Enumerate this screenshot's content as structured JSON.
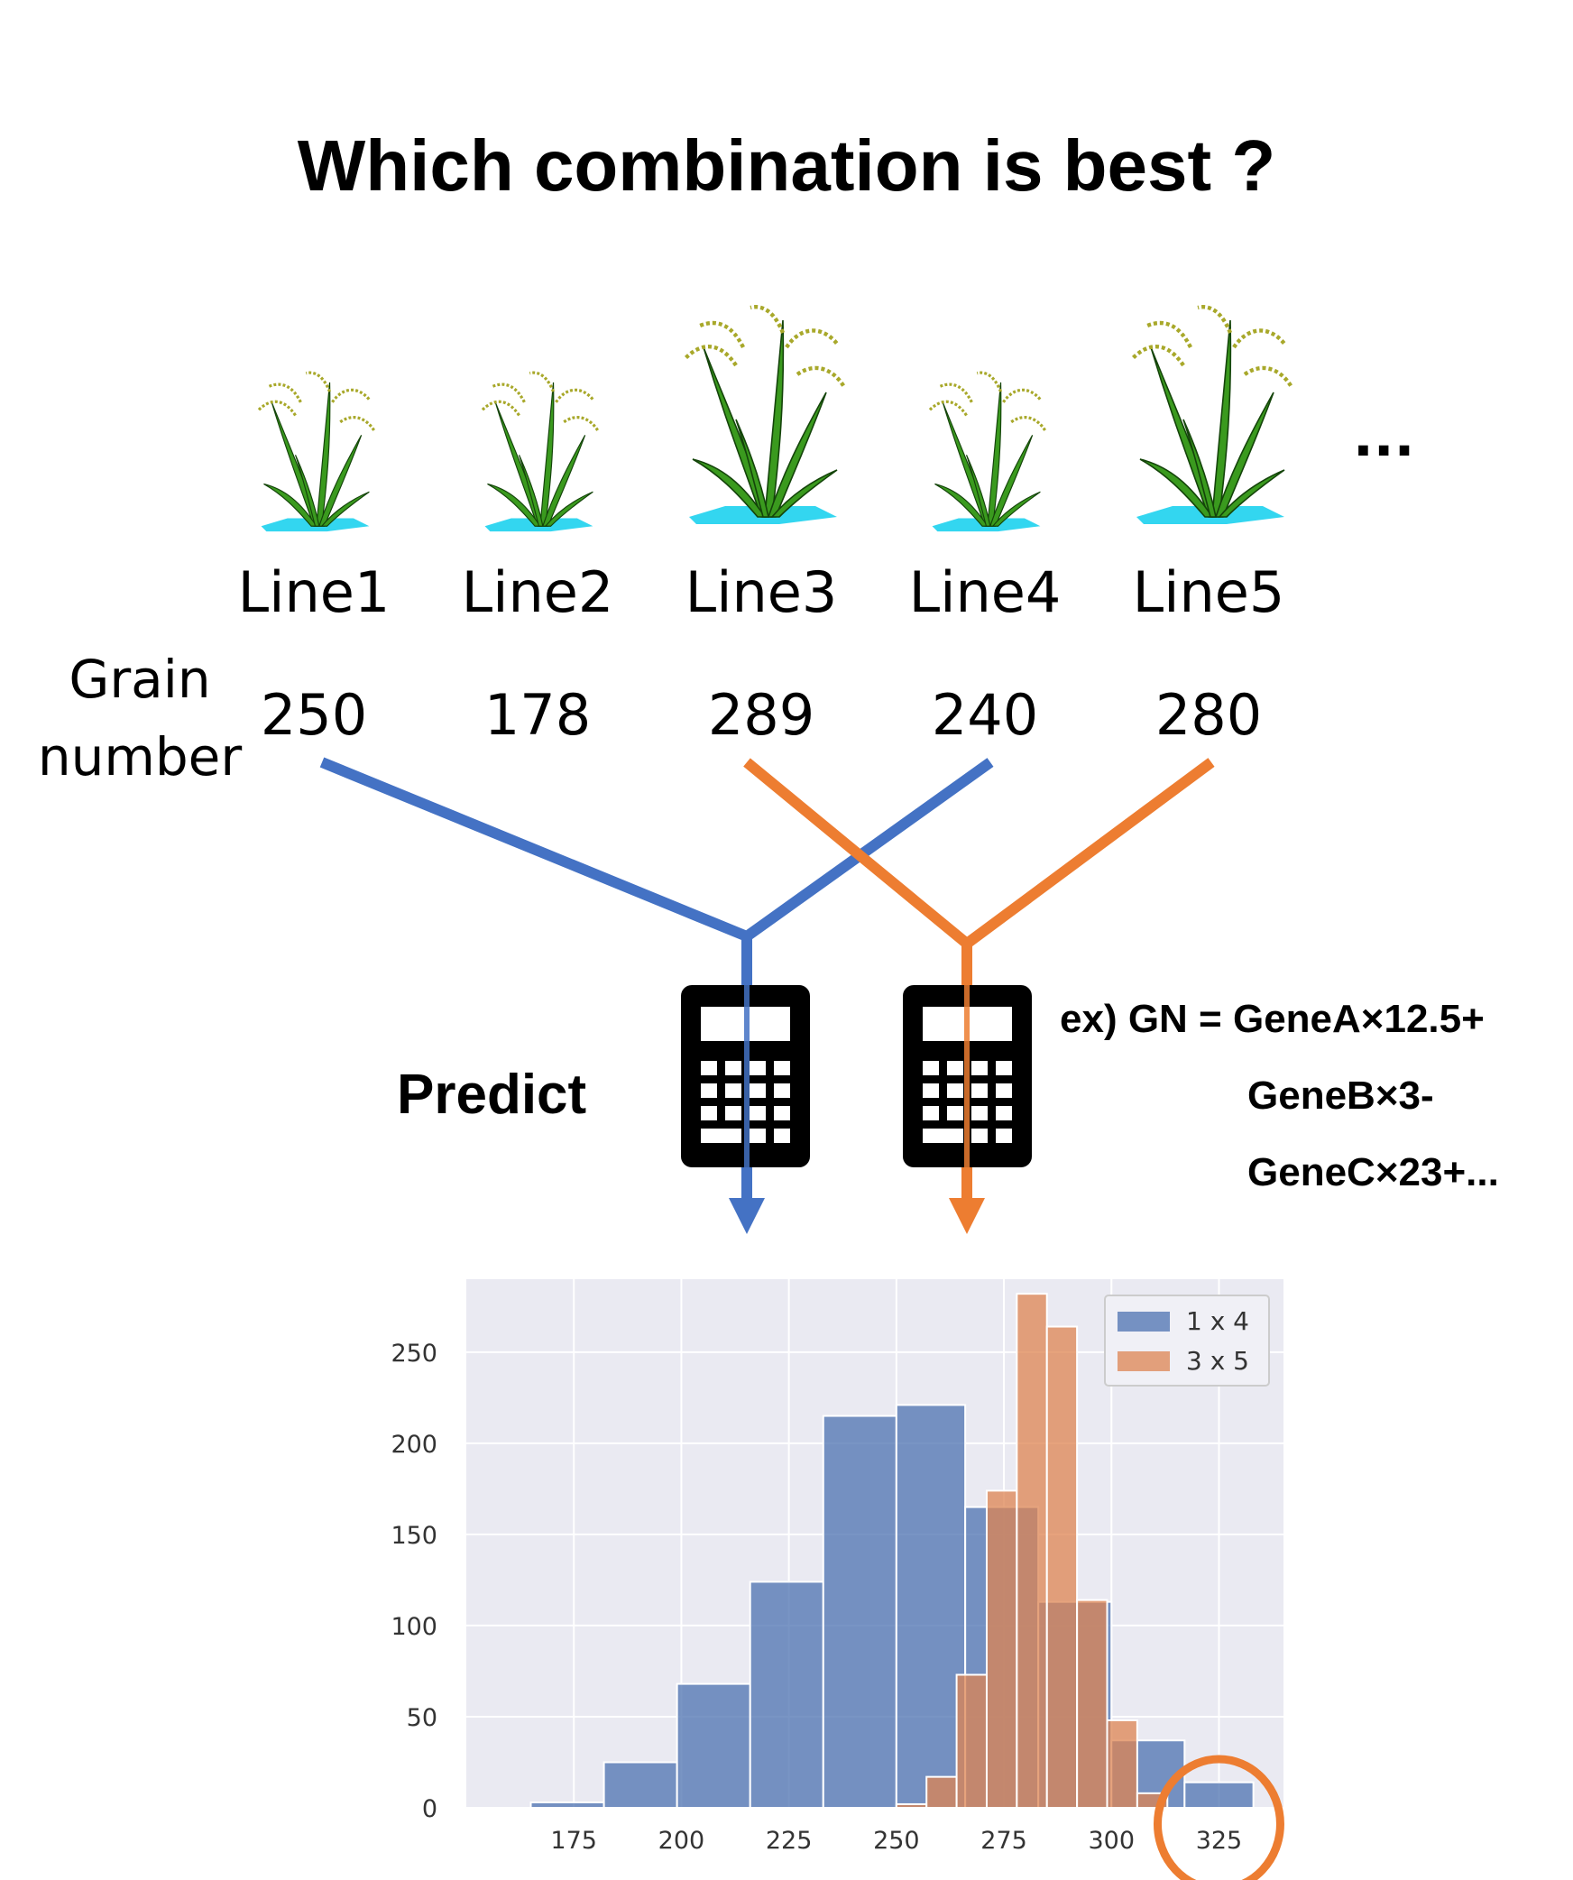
{
  "title": "Which combination is best ?",
  "lines": [
    {
      "label": "Line1",
      "grain": "250",
      "size": "small"
    },
    {
      "label": "Line2",
      "grain": "178",
      "size": "small"
    },
    {
      "label": "Line3",
      "grain": "289",
      "size": "large"
    },
    {
      "label": "Line4",
      "grain": "240",
      "size": "small"
    },
    {
      "label": "Line5",
      "grain": "280",
      "size": "large"
    }
  ],
  "more": "...",
  "grain_label_1": "Grain",
  "grain_label_2": "number",
  "predict_label": "Predict",
  "formula": {
    "line1": "ex) GN = GeneA×12.5+",
    "line2": "GeneB×3-",
    "line3": "GeneC×23+..."
  },
  "colors": {
    "blue": "#4472c4",
    "orange": "#ed7d31",
    "plot_bg": "#eaeaf2"
  },
  "icons": [
    "rice-plant-icon",
    "calculator-icon"
  ],
  "chart_data": {
    "type": "bar",
    "title": "",
    "xlabel": "",
    "ylabel": "",
    "xlim": [
      150,
      340
    ],
    "ylim": [
      0,
      290
    ],
    "xticks": [
      175,
      200,
      225,
      250,
      275,
      300,
      325
    ],
    "yticks": [
      0,
      50,
      100,
      150,
      200,
      250
    ],
    "grid": true,
    "legend": "top-right",
    "highlight": "325",
    "series": [
      {
        "name": "1 x 4",
        "color": "#4c72b0",
        "bins": [
          {
            "x0": 165,
            "x1": 182,
            "value": 3
          },
          {
            "x0": 182,
            "x1": 199,
            "value": 25
          },
          {
            "x0": 199,
            "x1": 216,
            "value": 68
          },
          {
            "x0": 216,
            "x1": 233,
            "value": 124
          },
          {
            "x0": 233,
            "x1": 250,
            "value": 215
          },
          {
            "x0": 250,
            "x1": 266,
            "value": 221
          },
          {
            "x0": 266,
            "x1": 283,
            "value": 165
          },
          {
            "x0": 283,
            "x1": 300,
            "value": 113
          },
          {
            "x0": 300,
            "x1": 317,
            "value": 37
          },
          {
            "x0": 317,
            "x1": 333,
            "value": 14
          }
        ]
      },
      {
        "name": "3 x 5",
        "color": "#dd8452",
        "bins": [
          {
            "x0": 250,
            "x1": 257,
            "value": 2
          },
          {
            "x0": 257,
            "x1": 264,
            "value": 17
          },
          {
            "x0": 264,
            "x1": 271,
            "value": 73
          },
          {
            "x0": 271,
            "x1": 278,
            "value": 174
          },
          {
            "x0": 278,
            "x1": 285,
            "value": 282
          },
          {
            "x0": 285,
            "x1": 292,
            "value": 264
          },
          {
            "x0": 292,
            "x1": 299,
            "value": 114
          },
          {
            "x0": 299,
            "x1": 306,
            "value": 48
          },
          {
            "x0": 306,
            "x1": 313,
            "value": 8
          }
        ]
      }
    ]
  }
}
